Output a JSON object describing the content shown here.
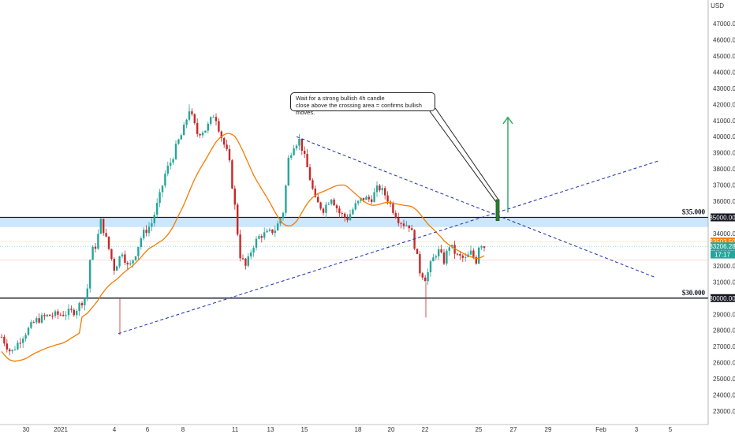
{
  "chart_data": {
    "type": "candlestick",
    "currency_label": "USD",
    "y_tick_labels": [
      "23000.00",
      "24000.00",
      "25000.00",
      "26000.00",
      "27000.00",
      "28000.00",
      "29000.00",
      "30000.00",
      "31000.00",
      "32000.00",
      "33000.00",
      "34000.00",
      "35000.00",
      "36000.00",
      "37000.00",
      "38000.00",
      "39000.00",
      "40000.00",
      "41000.00",
      "42000.00",
      "43000.00",
      "44000.00",
      "45000.00",
      "46000.00",
      "47000.00"
    ],
    "x_tick_labels": [
      "30",
      "2021",
      "4",
      "6",
      "8",
      "11",
      "13",
      "15",
      "18",
      "20",
      "22",
      "25",
      "27",
      "29",
      "Feb",
      "3",
      "5"
    ],
    "ylim": [
      22400,
      48200
    ],
    "price_badges": [
      {
        "label": "35000.00",
        "value": 35000,
        "color": "#131722"
      },
      {
        "label": "33503.50",
        "value": 33503,
        "color": "#f57c00"
      },
      {
        "label": "33206.28",
        "value": 33206,
        "color": "#26a69a"
      },
      {
        "label": "17:17",
        "value": 32700,
        "color": "#26a69a"
      },
      {
        "label": "30000.00",
        "value": 30000,
        "color": "#131722"
      }
    ],
    "levels": [
      {
        "label": "$35.000",
        "value": 35000
      },
      {
        "label": "$30.000",
        "value": 30000
      }
    ],
    "annotation": {
      "line1": "Wait for a strong bullish 4h candle",
      "line2": "close above the crossing area = confirms bullish moves."
    },
    "colors": {
      "up": "#26a69a",
      "down": "#c62828",
      "ma": "#f57c00",
      "trend": "#1a2fb0",
      "zone": "#bbdefb",
      "arrow": "#26a65b"
    }
  }
}
